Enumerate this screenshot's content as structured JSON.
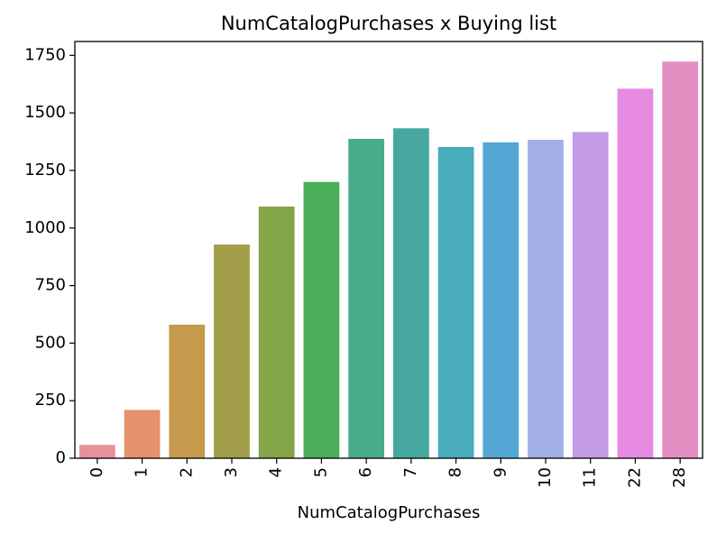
{
  "chart_data": {
    "type": "bar",
    "title": "NumCatalogPurchases x Buying list",
    "xlabel": "NumCatalogPurchases",
    "ylabel": "",
    "categories": [
      "0",
      "1",
      "2",
      "3",
      "4",
      "5",
      "6",
      "7",
      "8",
      "9",
      "10",
      "11",
      "22",
      "28"
    ],
    "values": [
      58,
      210,
      580,
      928,
      1093,
      1200,
      1387,
      1433,
      1352,
      1372,
      1383,
      1417,
      1605,
      1723
    ],
    "colors": [
      "#e8919b",
      "#e4926b",
      "#c59a4c",
      "#a29d49",
      "#84a548",
      "#4bae59",
      "#48ab8c",
      "#47a8a0",
      "#49acbd",
      "#53a8d5",
      "#a2aee8",
      "#c49be7",
      "#e68ae1",
      "#e38fc2"
    ],
    "yticks": [
      0,
      250,
      500,
      750,
      1000,
      1250,
      1500,
      1750
    ],
    "ylim": [
      0,
      1810
    ],
    "grid": false,
    "legend": "none"
  }
}
